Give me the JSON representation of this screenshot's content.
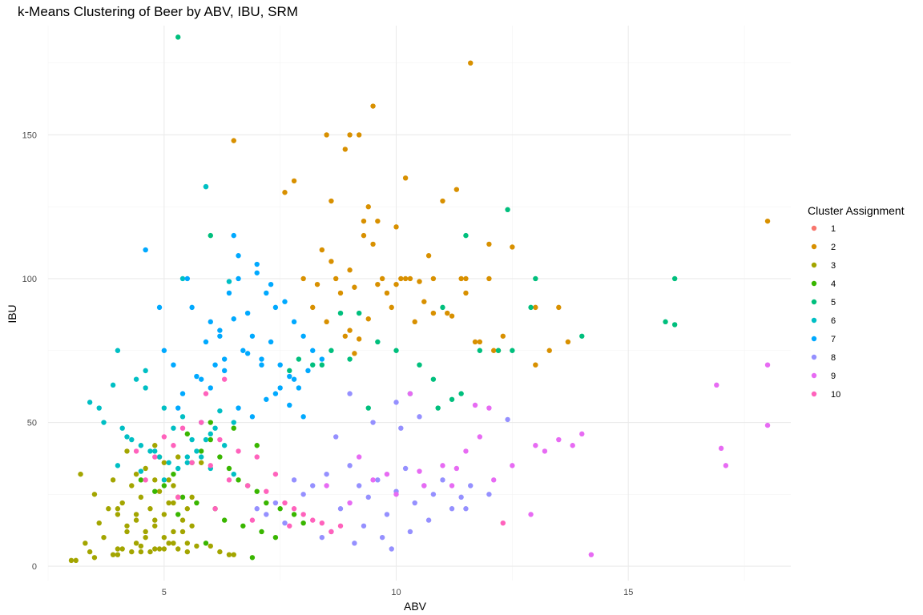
{
  "chart_data": {
    "type": "scatter",
    "title": "k-Means Clustering of Beer by ABV, IBU, SRM",
    "xlabel": "ABV",
    "ylabel": "IBU",
    "xlim": [
      2.5,
      18.5
    ],
    "ylim": [
      -5,
      188
    ],
    "x_ticks": [
      5,
      10,
      15
    ],
    "y_ticks": [
      0,
      50,
      100,
      150
    ],
    "grid": true,
    "legend": {
      "title": "Cluster Assignment",
      "placement": "right"
    },
    "series": [
      {
        "name": "1",
        "color": "#F8766D",
        "x": [],
        "y": []
      },
      {
        "name": "2",
        "color": "#D89000",
        "x": [
          6.5,
          8.5,
          9.0,
          9.2,
          8.9,
          9.5,
          7.6,
          7.8,
          10.2,
          11.3,
          11.6,
          8.6,
          9.3,
          9.4,
          10.0,
          11.0,
          12.0,
          12.5,
          8.0,
          8.3,
          8.7,
          9.1,
          9.7,
          10.1,
          10.5,
          11.4,
          12.3,
          9.8,
          9.9,
          10.3,
          10.6,
          11.2,
          11.5,
          11.7,
          12.1,
          13.0,
          13.3,
          13.5,
          13.7,
          8.2,
          8.8,
          9.6,
          10.4,
          10.8,
          11.1,
          9.0,
          9.2,
          9.4,
          8.5,
          8.9,
          10.0,
          10.2,
          12.0,
          13.0,
          11.5,
          10.8,
          9.6,
          9.3,
          18.0,
          8.4,
          8.6,
          9.0,
          9.5,
          10.7,
          11.8,
          12.2,
          9.1
        ],
        "y": [
          148,
          150,
          150,
          150,
          145,
          160,
          130,
          134,
          135,
          131,
          175,
          127,
          120,
          125,
          118,
          127,
          112,
          111,
          100,
          98,
          100,
          97,
          100,
          100,
          99,
          100,
          80,
          95,
          90,
          100,
          92,
          87,
          100,
          78,
          75,
          70,
          75,
          90,
          78,
          90,
          95,
          98,
          85,
          88,
          88,
          82,
          79,
          86,
          85,
          80,
          98,
          100,
          100,
          90,
          95,
          100,
          120,
          115,
          120,
          110,
          106,
          103,
          112,
          108,
          78,
          75,
          74
        ]
      },
      {
        "name": "3",
        "color": "#A3A500",
        "x": [
          3.2,
          3.5,
          3.6,
          3.8,
          3.9,
          4.0,
          4.1,
          4.2,
          4.3,
          4.4,
          4.5,
          4.6,
          4.7,
          4.8,
          4.9,
          5.0,
          5.1,
          5.2,
          5.3,
          5.4,
          5.5,
          3.3,
          3.7,
          4.0,
          4.2,
          4.4,
          4.6,
          4.8,
          5.0,
          5.2,
          5.4,
          5.6,
          3.4,
          3.9,
          4.1,
          4.3,
          4.5,
          4.7,
          4.9,
          5.1,
          5.3,
          5.5,
          5.7,
          4.6,
          4.8,
          5.0,
          5.2,
          4.4,
          4.9,
          5.1,
          3.0,
          3.1,
          3.5,
          4.0,
          4.5,
          5.0,
          5.5,
          6.0,
          6.2,
          6.4,
          6.5,
          4.2,
          4.8,
          5.3,
          5.8,
          4.0,
          4.4,
          4.8,
          5.2,
          5.6
        ],
        "y": [
          32,
          25,
          15,
          20,
          30,
          18,
          22,
          12,
          28,
          16,
          24,
          10,
          20,
          14,
          26,
          18,
          22,
          12,
          24,
          16,
          20,
          8,
          10,
          6,
          14,
          8,
          12,
          6,
          10,
          8,
          12,
          14,
          5,
          4,
          6,
          5,
          7,
          5,
          6,
          8,
          6,
          5,
          7,
          34,
          30,
          36,
          28,
          32,
          38,
          30,
          2,
          2,
          3,
          4,
          5,
          6,
          8,
          7,
          5,
          4,
          4,
          40,
          42,
          38,
          36,
          20,
          18,
          16,
          22,
          24
        ]
      },
      {
        "name": "4",
        "color": "#39B600",
        "x": [
          4.5,
          4.8,
          5.0,
          5.2,
          5.4,
          5.6,
          5.8,
          6.0,
          6.2,
          6.4,
          6.6,
          6.8,
          7.0,
          7.2,
          7.5,
          7.8,
          8.0,
          5.5,
          6.0,
          6.5,
          7.0,
          5.3,
          5.7,
          6.1,
          6.3,
          6.7,
          7.1,
          7.4,
          5.9,
          6.9
        ],
        "y": [
          30,
          26,
          28,
          32,
          24,
          36,
          40,
          44,
          38,
          34,
          30,
          28,
          26,
          22,
          20,
          18,
          15,
          46,
          50,
          48,
          42,
          18,
          22,
          20,
          16,
          14,
          12,
          10,
          8,
          3
        ]
      },
      {
        "name": "5",
        "color": "#00BF7D",
        "x": [
          5.3,
          5.9,
          6.0,
          11.0,
          11.5,
          12.4,
          13.0,
          12.9,
          14.0,
          15.8,
          16.0,
          16.0,
          11.8,
          12.2,
          12.5,
          11.4,
          10.5,
          10.8,
          8.8,
          9.2,
          9.6,
          10.0,
          9.0,
          8.4,
          7.7,
          7.9,
          8.2,
          8.6,
          9.4,
          10.3,
          10.9,
          11.2
        ],
        "y": [
          184,
          132,
          115,
          90,
          115,
          124,
          100,
          90,
          80,
          85,
          100,
          84,
          75,
          75,
          75,
          60,
          70,
          65,
          88,
          88,
          78,
          75,
          72,
          70,
          68,
          72,
          70,
          75,
          55,
          60,
          55,
          58
        ]
      },
      {
        "name": "6",
        "color": "#00BFC4",
        "x": [
          3.4,
          3.6,
          3.7,
          4.0,
          4.2,
          4.4,
          4.6,
          4.8,
          5.0,
          5.2,
          5.4,
          5.6,
          5.8,
          6.0,
          6.2,
          6.5,
          3.9,
          4.1,
          4.3,
          4.5,
          4.7,
          4.9,
          5.1,
          5.3,
          5.5,
          5.7,
          5.9,
          6.1,
          6.3,
          4.0,
          4.5,
          5.0,
          5.5,
          6.0,
          6.5,
          5.9,
          6.4,
          5.4,
          4.6
        ],
        "y": [
          57,
          55,
          50,
          75,
          45,
          65,
          68,
          40,
          55,
          48,
          52,
          44,
          38,
          46,
          54,
          50,
          63,
          48,
          44,
          42,
          40,
          38,
          36,
          34,
          36,
          40,
          44,
          48,
          42,
          35,
          33,
          30,
          38,
          34,
          32,
          132,
          99,
          100,
          62
        ]
      },
      {
        "name": "7",
        "color": "#00A9FF",
        "x": [
          4.6,
          5.0,
          5.5,
          5.6,
          6.0,
          6.2,
          6.4,
          6.5,
          6.6,
          6.8,
          7.0,
          7.2,
          7.4,
          7.6,
          7.8,
          8.0,
          8.2,
          8.4,
          5.8,
          6.1,
          6.3,
          6.7,
          6.9,
          7.1,
          7.3,
          7.5,
          7.7,
          7.9,
          8.1,
          4.9,
          5.2,
          5.4,
          5.7,
          6.0,
          6.3,
          6.6,
          6.9,
          7.2,
          7.5,
          7.8,
          5.9,
          6.2,
          6.5,
          6.8,
          7.1,
          7.4,
          7.7,
          8.0,
          6.6,
          7.0,
          7.3,
          5.3,
          5.8
        ],
        "y": [
          110,
          75,
          100,
          90,
          85,
          80,
          95,
          115,
          100,
          88,
          105,
          95,
          90,
          92,
          85,
          80,
          75,
          72,
          65,
          70,
          68,
          75,
          80,
          72,
          78,
          70,
          66,
          62,
          68,
          90,
          70,
          60,
          66,
          62,
          72,
          55,
          52,
          58,
          62,
          65,
          78,
          82,
          86,
          74,
          70,
          60,
          56,
          52,
          108,
          102,
          98,
          55,
          50
        ]
      },
      {
        "name": "8",
        "color": "#9590FF",
        "x": [
          7.0,
          7.4,
          7.8,
          8.0,
          8.2,
          8.5,
          8.8,
          9.0,
          9.2,
          9.4,
          9.6,
          9.8,
          10.0,
          10.2,
          10.4,
          10.6,
          10.8,
          11.0,
          11.2,
          11.4,
          11.6,
          12.0,
          12.4,
          7.2,
          7.6,
          8.4,
          8.6,
          9.1,
          9.3,
          9.7,
          9.9,
          10.3,
          10.7,
          11.5,
          8.7,
          9.5,
          10.1,
          10.5,
          9.0,
          10.0
        ],
        "y": [
          20,
          22,
          30,
          25,
          28,
          32,
          20,
          35,
          28,
          24,
          30,
          18,
          26,
          34,
          22,
          28,
          25,
          30,
          20,
          24,
          28,
          25,
          51,
          18,
          15,
          10,
          12,
          8,
          14,
          10,
          6,
          12,
          16,
          20,
          45,
          50,
          48,
          52,
          60,
          57
        ]
      },
      {
        "name": "9",
        "color": "#E76BF3",
        "x": [
          8.5,
          9.0,
          9.5,
          10.0,
          10.5,
          11.0,
          11.2,
          11.5,
          11.8,
          12.0,
          12.5,
          13.0,
          13.2,
          13.5,
          14.0,
          14.2,
          16.9,
          17.0,
          17.1,
          18.0,
          18.0,
          9.2,
          9.8,
          10.6,
          11.3,
          12.1,
          12.9,
          13.8,
          10.3,
          11.7
        ],
        "y": [
          28,
          22,
          30,
          25,
          33,
          35,
          28,
          40,
          45,
          55,
          35,
          42,
          40,
          44,
          46,
          4,
          63,
          41,
          35,
          70,
          49,
          38,
          32,
          28,
          34,
          30,
          18,
          42,
          60,
          56
        ]
      },
      {
        "name": "10",
        "color": "#FF62BC",
        "x": [
          4.4,
          4.8,
          5.2,
          5.6,
          6.0,
          6.4,
          6.8,
          7.2,
          7.6,
          8.0,
          8.4,
          8.8,
          5.0,
          5.4,
          5.8,
          6.2,
          6.6,
          7.0,
          7.4,
          7.8,
          8.2,
          4.6,
          5.3,
          6.1,
          6.9,
          7.7,
          8.6,
          12.3,
          6.3,
          5.9
        ],
        "y": [
          40,
          38,
          42,
          36,
          35,
          30,
          28,
          26,
          22,
          18,
          15,
          14,
          45,
          48,
          50,
          44,
          40,
          38,
          32,
          20,
          16,
          30,
          24,
          20,
          16,
          14,
          12,
          15,
          65,
          60
        ]
      }
    ]
  }
}
